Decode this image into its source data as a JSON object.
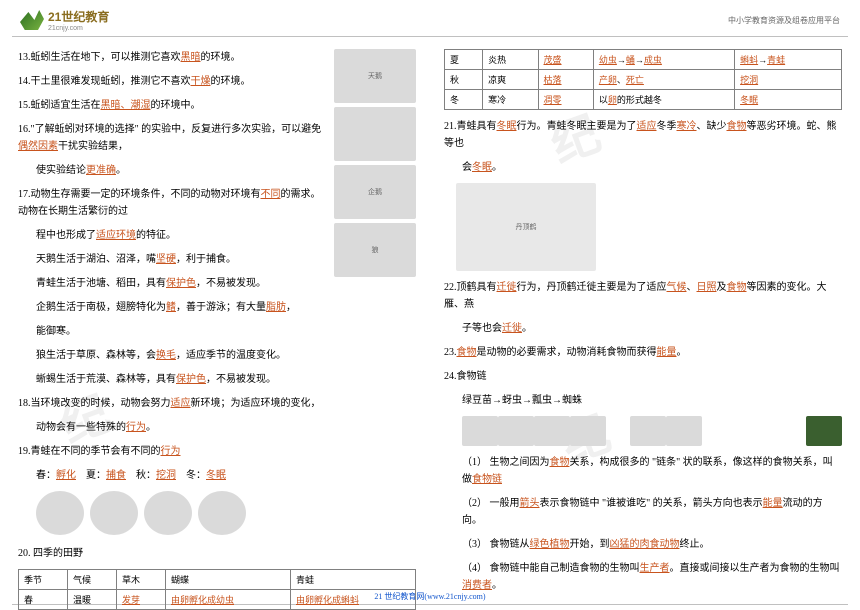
{
  "header": {
    "logo_text": "21世纪教育",
    "logo_sub": "21cnjy.com",
    "right_text": "中小学教育资源及组卷应用平台"
  },
  "watermarks": [
    "纪",
    "纪",
    "纪"
  ],
  "left": {
    "lines": [
      {
        "n": "13.",
        "t": [
          "蚯蚓生活在地下，可以推测它喜欢",
          {
            "hl": "黑暗"
          },
          "的环境。"
        ]
      },
      {
        "n": "14.",
        "t": [
          "干土里很难发现蚯蚓，推测它不喜欢",
          {
            "hl": "干燥"
          },
          "的环境。"
        ]
      },
      {
        "n": "15.",
        "t": [
          "蚯蚓适宜生活在",
          {
            "hl": "黑暗、潮湿"
          },
          "的环境中。"
        ]
      },
      {
        "n": "16.",
        "t": [
          "\"了解蚯蚓对环境的选择\" 的实验中，反复进行多次实验，可以避免",
          {
            "hl": "偶然因素"
          },
          "干扰实验结果，"
        ]
      },
      {
        "n": "",
        "t": [
          "使实验结论",
          {
            "hl": "更准确"
          },
          "。"
        ],
        "indent": true
      },
      {
        "n": "17.",
        "t": [
          "动物生存需要一定的环境条件，不同的动物对环境有",
          {
            "hl": "不同"
          },
          "的需求。动物在长期生活繁衍的过"
        ]
      },
      {
        "n": "",
        "t": [
          "程中也形成了",
          {
            "hl": "适应环境"
          },
          "的特征。"
        ],
        "indent": true
      },
      {
        "n": "",
        "t": [
          "天鹅生活于湖泊、沼泽，嘴",
          {
            "hl": "坚硬"
          },
          "，利于捕食。"
        ],
        "indent": true
      },
      {
        "n": "",
        "t": [
          "青蛙生活于池塘、稻田，具有",
          {
            "hl": "保护色"
          },
          "，不易被发现。"
        ],
        "indent": true
      },
      {
        "n": "",
        "t": [
          "企鹅生活于南极，翅膀特化为",
          {
            "hl": "鳍"
          },
          "，善于游泳；有大量",
          {
            "hl": "脂肪"
          },
          "，"
        ],
        "indent": true
      },
      {
        "n": "",
        "t": [
          "能御寒。"
        ],
        "indent": true
      },
      {
        "n": "",
        "t": [
          "狼生活于草原、森林等，会",
          {
            "hl": "换毛"
          },
          "，适应季节的温度变化。"
        ],
        "indent": true
      },
      {
        "n": "",
        "t": [
          "蜥蜴生活于荒漠、森林等，具有",
          {
            "hl": "保护色"
          },
          "，不易被发现。"
        ],
        "indent": true
      },
      {
        "n": "18.",
        "t": [
          "当环境改变的时候，动物会努力",
          {
            "hl": "适应"
          },
          "新环境；为适应环境的变化，"
        ]
      },
      {
        "n": "",
        "t": [
          "动物会有一些特殊的",
          {
            "hl": "行为"
          },
          "。"
        ],
        "indent": true
      },
      {
        "n": "19.",
        "t": [
          "青蛙在不同的季节会有不同的",
          {
            "hl": "行为"
          }
        ]
      },
      {
        "n": "",
        "t": [
          "春：",
          {
            "hl": "孵化"
          },
          "　夏：",
          {
            "hl": "捕食"
          },
          "　秋：",
          {
            "hl": "挖洞"
          },
          "　冬：",
          {
            "hl": "冬眠"
          }
        ],
        "indent": true
      }
    ],
    "item20_label": "20. 四季的田野",
    "table_left": {
      "header": [
        "季节",
        "气候",
        "草木",
        "蝴蝶",
        "青蛙"
      ],
      "rows": [
        [
          "春",
          "温暖",
          [
            {
              "hl": "发芽"
            }
          ],
          [
            {
              "hl": "由卵孵化成幼虫"
            }
          ],
          [
            {
              "hl": "由卵孵化成蝌蚪"
            }
          ]
        ]
      ]
    },
    "right_img_labels": [
      "天鹅",
      "",
      "企鹅",
      "狼"
    ]
  },
  "right": {
    "table_top": {
      "rows": [
        [
          "夏",
          "炎热",
          [
            {
              "hl": "茂盛"
            }
          ],
          [
            {
              "hl": "幼虫"
            },
            "→",
            {
              "hl": "蛹"
            },
            "→",
            {
              "hl": "成虫"
            }
          ],
          [
            {
              "hl": "蝌蚪"
            },
            "→",
            {
              "hl": "青蛙"
            }
          ]
        ],
        [
          "秋",
          "凉爽",
          [
            {
              "hl": "枯落"
            }
          ],
          [
            {
              "hl": "产卵"
            },
            "、",
            {
              "hl": "死亡"
            }
          ],
          [
            {
              "hl": "挖洞"
            }
          ]
        ],
        [
          "冬",
          "寒冷",
          [
            {
              "hl": "凋零"
            }
          ],
          [
            "以",
            {
              "hl": "卵"
            },
            "的形式越冬"
          ],
          [
            {
              "hl": "冬眠"
            }
          ]
        ]
      ]
    },
    "lines21": [
      {
        "n": "21.",
        "t": [
          "青蛙具有",
          {
            "hl": "冬眠"
          },
          "行为。青蛙冬眠主要是为了",
          {
            "hl": "适应"
          },
          "冬季",
          {
            "hl": "寒冷"
          },
          "、缺少",
          {
            "hl": "食物"
          },
          "等恶劣环境。蛇、熊等也"
        ]
      },
      {
        "n": "",
        "t": [
          "会",
          {
            "hl": "冬眠"
          },
          "。"
        ],
        "indent": true
      }
    ],
    "crane_label": "丹顶鹤",
    "lines22_24": [
      {
        "n": "22.",
        "t": [
          "顶鹤具有",
          {
            "hl": "迁徙"
          },
          "行为，丹顶鹤迁徙主要是为了适应",
          {
            "hl": "气候"
          },
          "、",
          {
            "hl": "日照"
          },
          "及",
          {
            "hl": "食物"
          },
          "等因素的变化。大雁、燕"
        ]
      },
      {
        "n": "",
        "t": [
          "子等也会",
          {
            "hl": "迁徙"
          },
          "。"
        ],
        "indent": true
      },
      {
        "n": "23.",
        "t": [
          {
            "hl": "食物"
          },
          "是动物的必要需求，动物消耗食物而获得",
          {
            "hl": "能量"
          },
          "。"
        ]
      },
      {
        "n": "24.",
        "t": [
          "食物链"
        ]
      }
    ],
    "chain_text": "绿豆苗→蚜虫→瓢虫→蜘蛛",
    "sub_lines": [
      {
        "n": "（1）",
        "t": [
          "生物之间因为",
          {
            "hl": "食物"
          },
          "关系，构成很多的 \"链条\" 状的联系，像这样的食物关系，叫做",
          {
            "hl": "食物链"
          }
        ]
      },
      {
        "n": "（2）",
        "t": [
          "一般用",
          {
            "hl": "箭头"
          },
          "表示食物链中 \"谁被谁吃\" 的关系，箭头方向也表示",
          {
            "hl": "能量"
          },
          "流动的方向。"
        ]
      },
      {
        "n": "（3）",
        "t": [
          "食物链从",
          {
            "hl": "绿色植物"
          },
          "开始，到",
          {
            "hl": "凶猛的肉食动物"
          },
          "终止。"
        ]
      },
      {
        "n": "（4）",
        "t": [
          "食物链中能自己制造食物的生物叫",
          {
            "hl": "生产者"
          },
          "。直接或间接以生产者为食物的生物叫",
          {
            "hl": "消费者"
          },
          "。"
        ]
      }
    ]
  },
  "footer": "21 世纪教育网(www.21cnjy.com)"
}
